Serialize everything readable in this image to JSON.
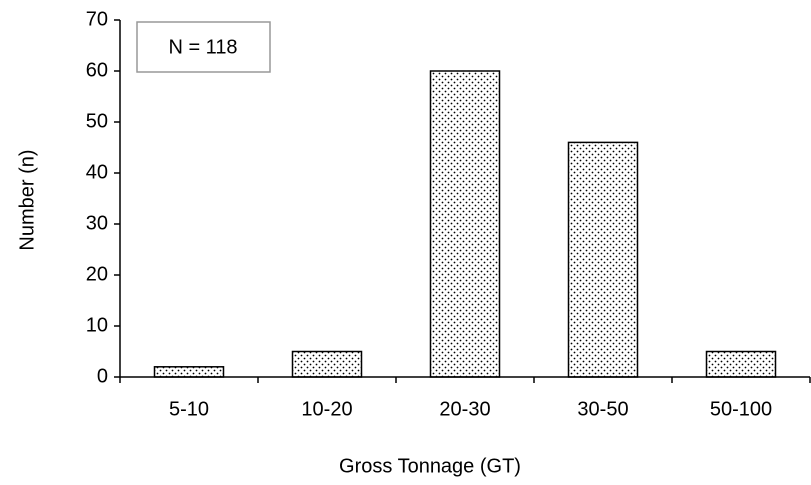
{
  "chart_data": {
    "type": "bar",
    "categories": [
      "5-10",
      "10-20",
      "20-30",
      "30-50",
      "50-100"
    ],
    "values": [
      2,
      5,
      60,
      46,
      5
    ],
    "color": "#000000",
    "ylim": [
      0,
      70
    ],
    "yticks": [
      0,
      10,
      20,
      30,
      40,
      50,
      60,
      70
    ],
    "xlabel": "Gross Tonnage (GT)",
    "ylabel": "Number (n)",
    "annotation": "N = 118"
  }
}
